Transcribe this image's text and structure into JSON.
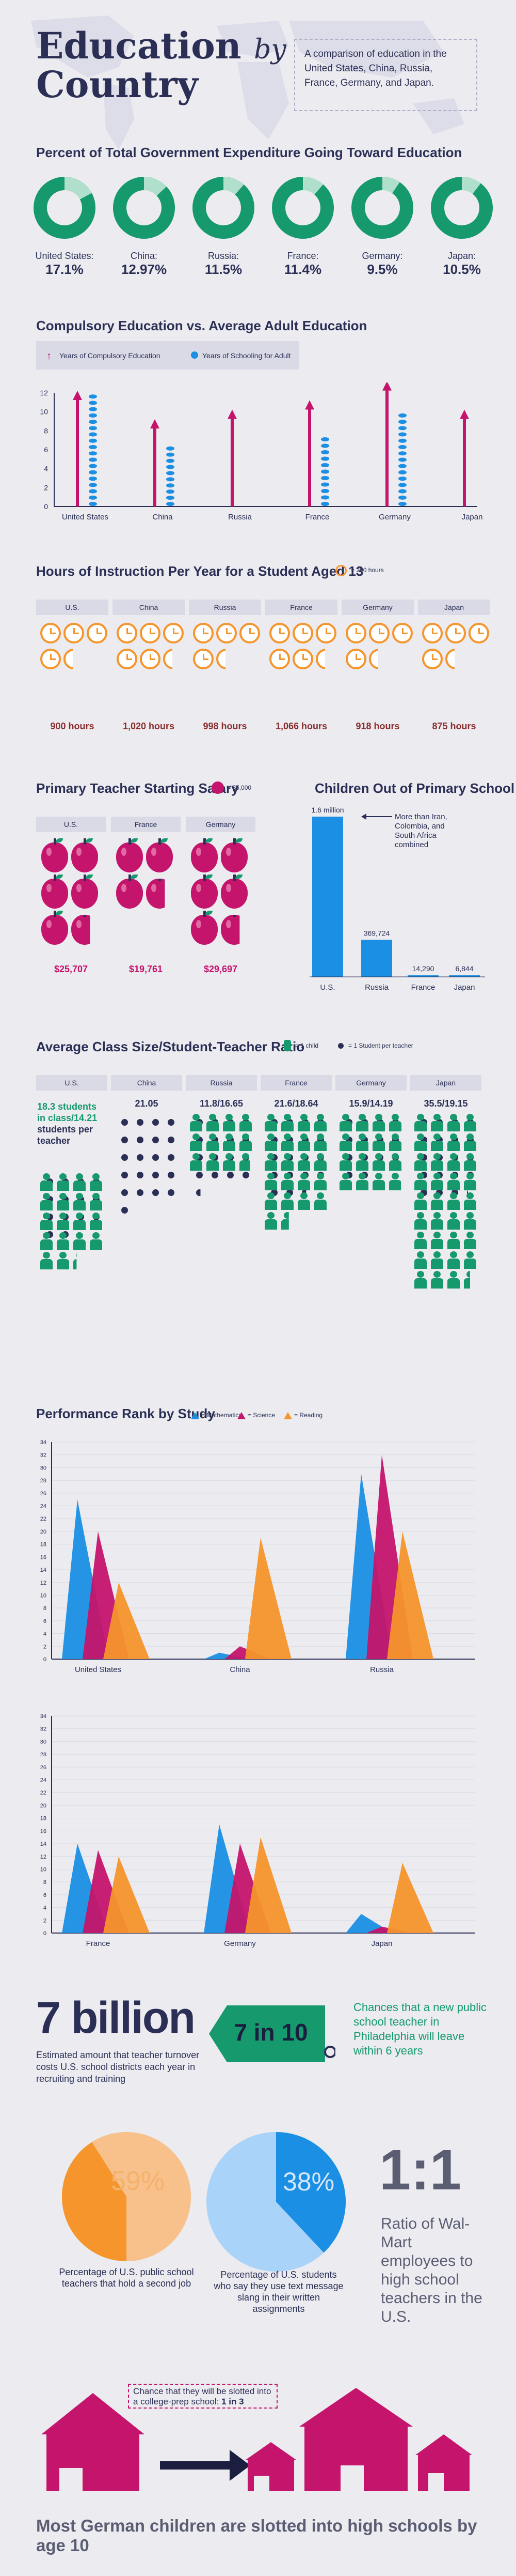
{
  "header": {
    "title_line1": "Education",
    "title_by": "by",
    "title_line2": "Country",
    "subtitle": "A comparison of education in the United States, China, Russia, France, Germany, and Japan."
  },
  "colors": {
    "green": "#15996d",
    "magenta": "#c4146c",
    "blue": "#1a8fe3",
    "orange": "#f5952c",
    "navy": "#2b2f55",
    "lightgreen": "#b0dfcb"
  },
  "expenditure": {
    "title": "Percent of Total Government Expenditure Going Toward Education",
    "items": [
      {
        "country": "United States:",
        "value": "17.1%",
        "pct": 17.1
      },
      {
        "country": "China:",
        "value": "12.97%",
        "pct": 12.97
      },
      {
        "country": "Russia:",
        "value": "11.5%",
        "pct": 11.5
      },
      {
        "country": "France:",
        "value": "11.4%",
        "pct": 11.4
      },
      {
        "country": "Germany:",
        "value": "9.5%",
        "pct": 9.5
      },
      {
        "country": "Japan:",
        "value": "10.5%",
        "pct": 10.5
      }
    ]
  },
  "compulsory": {
    "title": "Compulsory Education vs. Average Adult Education",
    "legend_compulsory": "Years of Compulsory Education",
    "legend_adult": "Years of Schooling for Adult"
  },
  "hours": {
    "title": "Hours of Instruction Per Year for a Student Aged 13",
    "legend": "= 200 hours"
  },
  "salary": {
    "title": "Primary Teacher Starting Salary",
    "legend": "= $5,000"
  },
  "out_of_school": {
    "title": "Children Out of Primary School",
    "annotation": "More than Iran, Colombia, and South Africa combined"
  },
  "class_size": {
    "title": "Average Class Size/Student-Teacher Ratio",
    "legend_child": "= 1 child",
    "legend_student": "= 1 Student per teacher",
    "us_detail_1": "18.3 students",
    "us_detail_2": "in class/14.21",
    "us_detail_3": "students per",
    "us_detail_4": "teacher"
  },
  "performance": {
    "title": "Performance Rank by Study",
    "legend": [
      "= Mathematics",
      "= Science",
      "= Reading"
    ]
  },
  "facts": {
    "billion_value": "7 billion",
    "billion_text": "Estimated amount that teacher turnover costs U.S. school districts each year in recruiting and training",
    "tag_value": "7 in 10",
    "tag_text": "Chances that a new public school teacher in Philadelphia will leave within 6 years",
    "pie1_value": "59%",
    "pie1_pct": 59,
    "pie1_text": "Percentage of U.S. public school teachers that hold a second job",
    "pie2_value": "38%",
    "pie2_pct": 38,
    "pie2_text": "Percentage of U.S. students who say they use text message slang in their written assignments",
    "ratio_value": "1:1",
    "ratio_text": "Ratio of Wal-Mart employees to high school teachers in the U.S."
  },
  "germany": {
    "chance_text": "Chance that they will be slotted into a college-prep school:",
    "chance_value": "1 in 3",
    "footer": "Most German children are slotted into high schools by age 10"
  },
  "chart_data": [
    {
      "type": "bar",
      "title": "Compulsory Education vs. Average Adult Education",
      "categories": [
        "United States",
        "China",
        "Russia",
        "France",
        "Germany",
        "Japan"
      ],
      "ylim": [
        0,
        12
      ],
      "yticks": [
        "0",
        "2",
        "4",
        "6",
        "8",
        "10",
        "12"
      ],
      "series": [
        {
          "name": "Years of Compulsory Education",
          "values": [
            12,
            9,
            10,
            11,
            13,
            10
          ]
        },
        {
          "name": "Years of Schooling for Adult",
          "values": [
            12,
            6.5,
            null,
            7.5,
            10,
            null
          ]
        }
      ]
    },
    {
      "type": "bar",
      "title": "Hours of Instruction Per Year for a Student Aged 13",
      "categories": [
        "U.S.",
        "China",
        "Russia",
        "France",
        "Germany",
        "Japan"
      ],
      "values": [
        900,
        1020,
        998,
        1066,
        918,
        875
      ],
      "value_labels": [
        "900 hours",
        "1,020 hours",
        "998 hours",
        "1,066 hours",
        "918 hours",
        "875 hours"
      ]
    },
    {
      "type": "bar",
      "title": "Primary Teacher Starting Salary",
      "categories": [
        "U.S.",
        "France",
        "Germany"
      ],
      "values": [
        25707,
        19761,
        29697
      ],
      "value_labels": [
        "$25,707",
        "$19,761",
        "$29,697"
      ]
    },
    {
      "type": "bar",
      "title": "Children Out of Primary School",
      "categories": [
        "U.S.",
        "Russia",
        "France",
        "Japan"
      ],
      "values": [
        1600000,
        369724,
        14290,
        6844
      ],
      "value_labels": [
        "1.6 million",
        "369,724",
        "14,290",
        "6,844"
      ]
    },
    {
      "type": "bar",
      "title": "Average Class Size/Student-Teacher Ratio",
      "categories": [
        "U.S.",
        "China",
        "Russia",
        "France",
        "Germany",
        "Japan"
      ],
      "value_labels": [
        "",
        "21.05",
        "11.8/16.65",
        "21.6/18.64",
        "15.9/14.19",
        "35.5/19.15"
      ],
      "series": [
        {
          "name": "= 1 child",
          "values": [
            18.3,
            null,
            11.8,
            21.6,
            15.9,
            35.5
          ]
        },
        {
          "name": "= 1 Student per teacher",
          "values": [
            14.21,
            21.05,
            16.65,
            18.64,
            14.19,
            19.15
          ]
        }
      ]
    },
    {
      "type": "area",
      "title": "Performance Rank by Study",
      "ylim": [
        0,
        34
      ],
      "yticks": [
        "0",
        "2",
        "4",
        "6",
        "8",
        "10",
        "12",
        "14",
        "16",
        "18",
        "20",
        "22",
        "24",
        "26",
        "28",
        "30",
        "32",
        "34"
      ],
      "categories": [
        "United States",
        "China",
        "Russia",
        "France",
        "Germany",
        "Japan"
      ],
      "series": [
        {
          "name": "= Mathematics",
          "values": [
            25,
            1,
            29,
            14,
            17,
            3
          ]
        },
        {
          "name": "= Science",
          "values": [
            20,
            2,
            32,
            13,
            14,
            1
          ]
        },
        {
          "name": "= Reading",
          "values": [
            12,
            19,
            20,
            12,
            15,
            11
          ]
        }
      ]
    }
  ]
}
